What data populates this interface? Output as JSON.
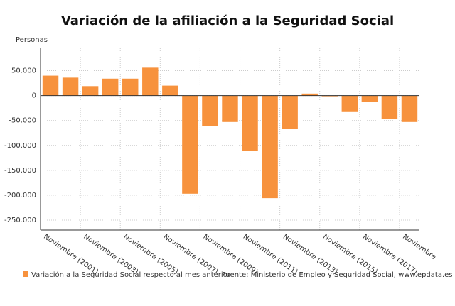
{
  "chart_data": {
    "type": "bar",
    "title": "Variación de la afiliación a la Seguridad Social",
    "y_label": "Personas",
    "categories": [
      "Noviembre (2001)",
      null,
      "Noviembre (2003)",
      null,
      "Noviembre (2005)",
      null,
      "Noviembre (2007)",
      null,
      "Noviembre (2009)",
      null,
      "Noviembre (2011)",
      null,
      "Noviembre (2013)",
      null,
      "Noviembre (2015)",
      null,
      "Noviembre (2017)",
      null,
      "Noviembre"
    ],
    "series": [
      {
        "name": "Variación a la Seguridad Social respecto al mes anterior",
        "color": "#f7923d",
        "values": [
          40000,
          36000,
          19000,
          34000,
          34000,
          56000,
          20000,
          -197000,
          -61000,
          -53000,
          -111000,
          -206000,
          -67000,
          4000,
          -1000,
          -33000,
          -13000,
          -47000,
          -53000
        ]
      }
    ],
    "ylim": [
      -270000,
      95000
    ],
    "yticks": [
      {
        "value": 50000,
        "label": "50.000"
      },
      0,
      {
        "value": -50000,
        "label": "-50.000"
      },
      {
        "value": -100000,
        "label": "-100.000"
      },
      {
        "value": -150000,
        "label": "-150.000"
      },
      {
        "value": -200000,
        "label": "-200.000"
      },
      {
        "value": -250000,
        "label": "-250.000"
      }
    ],
    "grid": true,
    "source": "Fuente: Ministerio de Empleo y Seguridad Social, www.epdata.es"
  }
}
